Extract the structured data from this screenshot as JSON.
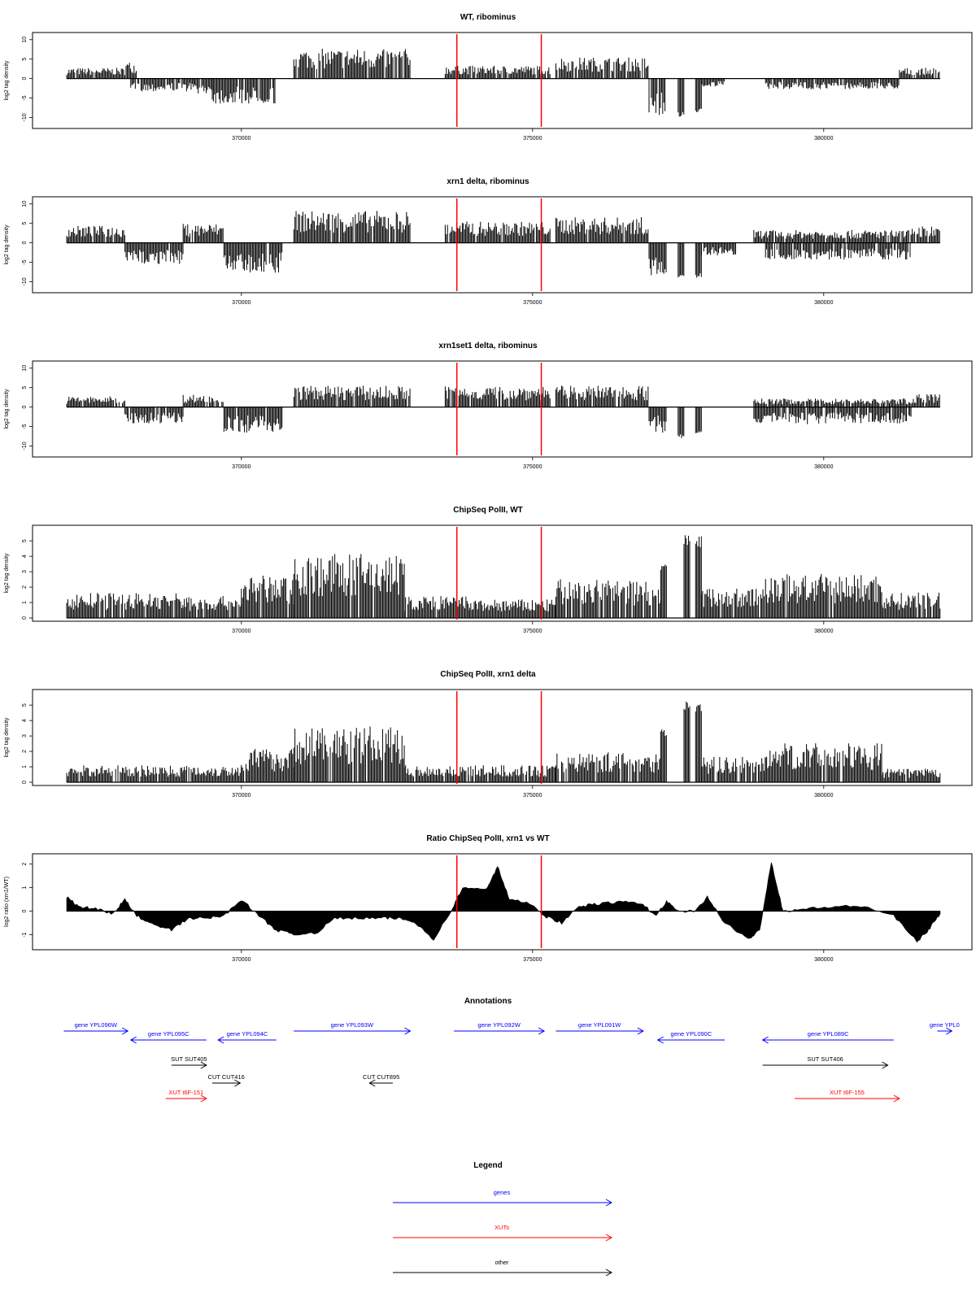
{
  "chart_data": [
    {
      "type": "bar",
      "title": "WT, ribominus",
      "ylabel": "log2 tag density",
      "xticks": [
        370000,
        375000,
        380000
      ],
      "xlim": [
        367000,
        382000
      ],
      "ylim": [
        -12,
        11
      ],
      "yticks": [
        -10,
        -5,
        0,
        5,
        10
      ],
      "markers": [
        373700,
        375150
      ],
      "series": [
        {
          "segments": [
            {
              "x0": 367000,
              "x1": 368000,
              "y": 2.5
            },
            {
              "x0": 368000,
              "x1": 368200,
              "y": 4
            },
            {
              "x0": 368200,
              "x1": 367800,
              "y": 0
            },
            {
              "x0": 368100,
              "x1": 369200,
              "y": -3
            },
            {
              "x0": 369200,
              "x1": 369500,
              "y": -3.5
            },
            {
              "x0": 369500,
              "x1": 370600,
              "y": -6
            },
            {
              "x0": 370900,
              "x1": 372900,
              "y": 7
            },
            {
              "x0": 373500,
              "x1": 375300,
              "y": 3
            },
            {
              "x0": 375400,
              "x1": 377000,
              "y": 5
            },
            {
              "x0": 377000,
              "x1": 377300,
              "y": -9
            },
            {
              "x0": 377500,
              "x1": 377600,
              "y": -10
            },
            {
              "x0": 377800,
              "x1": 377900,
              "y": -9
            },
            {
              "x0": 377900,
              "x1": 378300,
              "y": -2
            },
            {
              "x0": 379000,
              "x1": 381300,
              "y": -2.5
            },
            {
              "x0": 381300,
              "x1": 382000,
              "y": 2.5
            }
          ]
        }
      ]
    },
    {
      "type": "bar",
      "title": "xrn1 delta, ribominus",
      "ylabel": "log2 tag density",
      "xticks": [
        370000,
        375000,
        380000
      ],
      "xlim": [
        367000,
        382000
      ],
      "ylim": [
        -12,
        11
      ],
      "yticks": [
        -10,
        -5,
        0,
        5,
        10
      ],
      "markers": [
        373700,
        375150
      ],
      "series": [
        {
          "segments": [
            {
              "x0": 367000,
              "x1": 368000,
              "y": 4
            },
            {
              "x0": 368000,
              "x1": 369000,
              "y": -5
            },
            {
              "x0": 369000,
              "x1": 369700,
              "y": 4.5
            },
            {
              "x0": 369700,
              "x1": 370700,
              "y": -7
            },
            {
              "x0": 370900,
              "x1": 372900,
              "y": 7.5
            },
            {
              "x0": 373500,
              "x1": 375300,
              "y": 5
            },
            {
              "x0": 375400,
              "x1": 377000,
              "y": 6
            },
            {
              "x0": 377000,
              "x1": 377300,
              "y": -8
            },
            {
              "x0": 377500,
              "x1": 377600,
              "y": -9
            },
            {
              "x0": 377800,
              "x1": 377900,
              "y": -9
            },
            {
              "x0": 377900,
              "x1": 378500,
              "y": -3
            },
            {
              "x0": 378800,
              "x1": 381500,
              "y": 3
            },
            {
              "x0": 379000,
              "x1": 381500,
              "y": -4
            },
            {
              "x0": 381500,
              "x1": 382000,
              "y": 4
            }
          ]
        }
      ]
    },
    {
      "type": "bar",
      "title": "xrn1set1 delta, ribominus",
      "ylabel": "log2 tag density",
      "xticks": [
        370000,
        375000,
        380000
      ],
      "xlim": [
        367000,
        382000
      ],
      "ylim": [
        -12,
        11
      ],
      "yticks": [
        -10,
        -5,
        0,
        5,
        10
      ],
      "markers": [
        373700,
        375150
      ],
      "series": [
        {
          "segments": [
            {
              "x0": 367000,
              "x1": 368000,
              "y": 2.5
            },
            {
              "x0": 368000,
              "x1": 369000,
              "y": -4
            },
            {
              "x0": 369000,
              "x1": 369700,
              "y": 3
            },
            {
              "x0": 369700,
              "x1": 370700,
              "y": -6
            },
            {
              "x0": 370900,
              "x1": 372900,
              "y": 5
            },
            {
              "x0": 373500,
              "x1": 375300,
              "y": 5
            },
            {
              "x0": 375400,
              "x1": 377000,
              "y": 5
            },
            {
              "x0": 377000,
              "x1": 377300,
              "y": -6
            },
            {
              "x0": 377500,
              "x1": 377600,
              "y": -8
            },
            {
              "x0": 377800,
              "x1": 377900,
              "y": -7
            },
            {
              "x0": 378800,
              "x1": 381500,
              "y": -4
            },
            {
              "x0": 378800,
              "x1": 381500,
              "y": 2
            },
            {
              "x0": 381500,
              "x1": 382000,
              "y": 3
            }
          ]
        }
      ]
    },
    {
      "type": "bar",
      "title": "ChipSeq PolII, WT",
      "ylabel": "log2 tag density",
      "xticks": [
        370000,
        375000,
        380000
      ],
      "xlim": [
        367000,
        382000
      ],
      "ylim": [
        0,
        5.8
      ],
      "yticks": [
        0,
        1,
        2,
        3,
        4,
        5
      ],
      "markers": [
        373700,
        375150
      ],
      "series": [
        {
          "segments": [
            {
              "x0": 367000,
              "x1": 369000,
              "y": 1.5
            },
            {
              "x0": 369000,
              "x1": 370000,
              "y": 1.3
            },
            {
              "x0": 370000,
              "x1": 370900,
              "y": 2.5
            },
            {
              "x0": 370900,
              "x1": 372800,
              "y": 3.8
            },
            {
              "x0": 372800,
              "x1": 373900,
              "y": 1.3
            },
            {
              "x0": 373900,
              "x1": 375400,
              "y": 1.1
            },
            {
              "x0": 375400,
              "x1": 377200,
              "y": 2.3
            },
            {
              "x0": 377200,
              "x1": 377300,
              "y": 3.5
            },
            {
              "x0": 377600,
              "x1": 377700,
              "y": 5.4
            },
            {
              "x0": 377800,
              "x1": 377900,
              "y": 5.4
            },
            {
              "x0": 377900,
              "x1": 379000,
              "y": 1.8
            },
            {
              "x0": 379000,
              "x1": 381000,
              "y": 2.6
            },
            {
              "x0": 381000,
              "x1": 382000,
              "y": 1.5
            }
          ]
        }
      ]
    },
    {
      "type": "bar",
      "title": "ChipSeq PolII, xrn1 delta",
      "ylabel": "log2 tag density",
      "xticks": [
        370000,
        375000,
        380000
      ],
      "xlim": [
        367000,
        382000
      ],
      "ylim": [
        0,
        5.8
      ],
      "yticks": [
        0,
        1,
        2,
        3,
        4,
        5
      ],
      "markers": [
        373700,
        375150
      ],
      "series": [
        {
          "segments": [
            {
              "x0": 367000,
              "x1": 369000,
              "y": 1.0
            },
            {
              "x0": 369000,
              "x1": 370000,
              "y": 1.0
            },
            {
              "x0": 370000,
              "x1": 370900,
              "y": 2.0
            },
            {
              "x0": 370900,
              "x1": 372800,
              "y": 3.3
            },
            {
              "x0": 372800,
              "x1": 373900,
              "y": 1.0
            },
            {
              "x0": 373900,
              "x1": 375400,
              "y": 1.0
            },
            {
              "x0": 375400,
              "x1": 377200,
              "y": 1.8
            },
            {
              "x0": 377200,
              "x1": 377300,
              "y": 3.5
            },
            {
              "x0": 377600,
              "x1": 377700,
              "y": 5.3
            },
            {
              "x0": 377800,
              "x1": 377900,
              "y": 5.3
            },
            {
              "x0": 377900,
              "x1": 379000,
              "y": 1.5
            },
            {
              "x0": 379000,
              "x1": 381000,
              "y": 2.3
            },
            {
              "x0": 381000,
              "x1": 382000,
              "y": 0.8
            }
          ]
        }
      ]
    },
    {
      "type": "area",
      "title": "Ratio ChipSeq PolII, xrn1 vs WT",
      "ylabel": "log2 ratio (xrn1/WT)",
      "xticks": [
        370000,
        375000,
        380000
      ],
      "xlim": [
        367000,
        382000
      ],
      "ylim": [
        -1.5,
        2.3
      ],
      "yticks": [
        -1,
        0,
        1,
        2
      ],
      "markers": [
        373700,
        375150
      ],
      "series": [
        {
          "points": [
            [
              367000,
              0.6
            ],
            [
              367200,
              0.2
            ],
            [
              367500,
              0.1
            ],
            [
              367800,
              -0.1
            ],
            [
              368000,
              0.5
            ],
            [
              368200,
              -0.2
            ],
            [
              368500,
              -0.6
            ],
            [
              368800,
              -0.8
            ],
            [
              369100,
              -0.3
            ],
            [
              369400,
              -0.3
            ],
            [
              369700,
              -0.2
            ],
            [
              370000,
              0.5
            ],
            [
              370300,
              -0.2
            ],
            [
              370600,
              -0.8
            ],
            [
              370900,
              -1.0
            ],
            [
              371300,
              -0.9
            ],
            [
              371600,
              -0.3
            ],
            [
              372000,
              -0.3
            ],
            [
              372400,
              -0.3
            ],
            [
              372700,
              -0.3
            ],
            [
              373000,
              -0.5
            ],
            [
              373300,
              -1.2
            ],
            [
              373600,
              0.0
            ],
            [
              373800,
              1.0
            ],
            [
              374200,
              0.9
            ],
            [
              374400,
              1.9
            ],
            [
              374600,
              0.5
            ],
            [
              375000,
              0.3
            ],
            [
              375200,
              -0.2
            ],
            [
              375500,
              -0.5
            ],
            [
              375800,
              0.2
            ],
            [
              376100,
              0.3
            ],
            [
              376500,
              0.4
            ],
            [
              376900,
              0.3
            ],
            [
              377100,
              -0.2
            ],
            [
              377300,
              0.4
            ],
            [
              377500,
              0.0
            ],
            [
              377800,
              0.0
            ],
            [
              378000,
              0.6
            ],
            [
              378300,
              -0.5
            ],
            [
              378700,
              -1.2
            ],
            [
              378900,
              -0.8
            ],
            [
              379100,
              2.1
            ],
            [
              379300,
              0.0
            ],
            [
              379700,
              0.1
            ],
            [
              380200,
              0.2
            ],
            [
              380700,
              0.2
            ],
            [
              381200,
              -0.2
            ],
            [
              381600,
              -1.3
            ],
            [
              381800,
              -0.8
            ],
            [
              382000,
              -0.1
            ]
          ]
        }
      ]
    }
  ],
  "annotations": {
    "title": "Annotations",
    "items": [
      {
        "label": "gene YPL096W",
        "x0": 366950,
        "x1": 368050,
        "row": 0,
        "dir": "right",
        "color": "#0000ff"
      },
      {
        "label": "gene YPL095C",
        "x0": 368100,
        "x1": 369400,
        "row": 1,
        "dir": "left",
        "color": "#0000ff"
      },
      {
        "label": "gene YPL094C",
        "x0": 369600,
        "x1": 370600,
        "row": 1,
        "dir": "left",
        "color": "#0000ff"
      },
      {
        "label": "gene YPL093W",
        "x0": 370900,
        "x1": 372900,
        "row": 0,
        "dir": "right",
        "color": "#0000ff"
      },
      {
        "label": "gene YPL092W",
        "x0": 373650,
        "x1": 375200,
        "row": 0,
        "dir": "right",
        "color": "#0000ff"
      },
      {
        "label": "gene YPL091W",
        "x0": 375400,
        "x1": 376900,
        "row": 0,
        "dir": "right",
        "color": "#0000ff"
      },
      {
        "label": "gene YPL090C",
        "x0": 377150,
        "x1": 378300,
        "row": 1,
        "dir": "left",
        "color": "#0000ff"
      },
      {
        "label": "gene YPL089C",
        "x0": 378950,
        "x1": 381200,
        "row": 1,
        "dir": "left",
        "color": "#0000ff"
      },
      {
        "label": "gene YPL0",
        "x0": 381950,
        "x1": 382200,
        "row": 0,
        "dir": "right",
        "color": "#0000ff"
      },
      {
        "label": "SUT SUT405",
        "x0": 368800,
        "x1": 369400,
        "row": 2,
        "dir": "right",
        "color": "#000000"
      },
      {
        "label": "CUT CUT416",
        "x0": 369500,
        "x1": 369980,
        "row": 3,
        "dir": "right",
        "color": "#000000"
      },
      {
        "label": "XUT t6F-151",
        "x0": 368700,
        "x1": 369400,
        "row": 4,
        "dir": "right",
        "color": "#ff0000"
      },
      {
        "label": "CUT CUT895",
        "x0": 372200,
        "x1": 372600,
        "row": 3,
        "dir": "left",
        "color": "#000000"
      },
      {
        "label": "SUT SUT406",
        "x0": 378950,
        "x1": 381100,
        "row": 2,
        "dir": "right",
        "color": "#000000"
      },
      {
        "label": "XUT t6F-155",
        "x0": 379500,
        "x1": 381300,
        "row": 4,
        "dir": "right",
        "color": "#ff0000"
      }
    ]
  },
  "legend": {
    "title": "Legend",
    "items": [
      {
        "label": "genes",
        "color": "#0000ff"
      },
      {
        "label": "XUTs",
        "color": "#ff0000"
      },
      {
        "label": "other",
        "color": "#000000"
      }
    ]
  },
  "colors": {
    "marker": "#ff0000",
    "bar": "#000000",
    "axis": "#000000"
  }
}
